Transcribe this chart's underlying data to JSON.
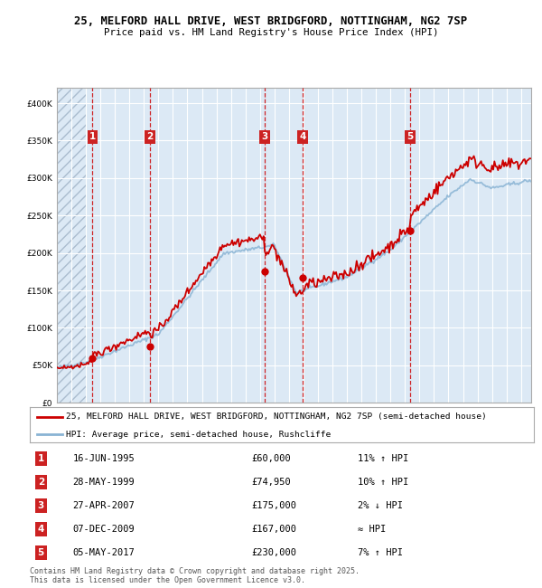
{
  "title_line1": "25, MELFORD HALL DRIVE, WEST BRIDGFORD, NOTTINGHAM, NG2 7SP",
  "title_line2": "Price paid vs. HM Land Registry's House Price Index (HPI)",
  "background_color": "#dce9f5",
  "grid_color": "#ffffff",
  "transactions": [
    {
      "num": 1,
      "date": "16-JUN-1995",
      "price": 60000,
      "hpi_note": "11% ↑ HPI",
      "x_year": 1995.46
    },
    {
      "num": 2,
      "date": "28-MAY-1999",
      "price": 74950,
      "hpi_note": "10% ↑ HPI",
      "x_year": 1999.41
    },
    {
      "num": 3,
      "date": "27-APR-2007",
      "price": 175000,
      "hpi_note": "2% ↓ HPI",
      "x_year": 2007.32
    },
    {
      "num": 4,
      "date": "07-DEC-2009",
      "price": 167000,
      "hpi_note": "≈ HPI",
      "x_year": 2009.93
    },
    {
      "num": 5,
      "date": "05-MAY-2017",
      "price": 230000,
      "hpi_note": "7% ↑ HPI",
      "x_year": 2017.34
    }
  ],
  "legend_line1": "25, MELFORD HALL DRIVE, WEST BRIDGFORD, NOTTINGHAM, NG2 7SP (semi-detached house)",
  "legend_line2": "HPI: Average price, semi-detached house, Rushcliffe",
  "footer": "Contains HM Land Registry data © Crown copyright and database right 2025.\nThis data is licensed under the Open Government Licence v3.0.",
  "line_color_red": "#cc0000",
  "line_color_blue": "#8ab4d4",
  "marker_color": "#cc0000",
  "vline_color": "#cc0000",
  "box_color": "#cc2222",
  "ylim": [
    0,
    420000
  ],
  "xlim_start": 1993.0,
  "xlim_end": 2025.7
}
